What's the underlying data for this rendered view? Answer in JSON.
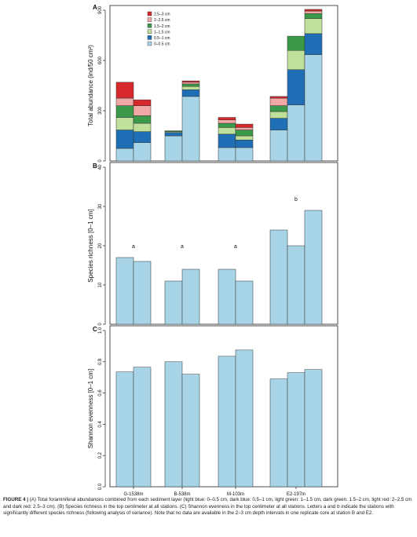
{
  "colors": {
    "bin_0_05": "#a8d4e8",
    "bin_05_1": "#1f6fb6",
    "bin_1_15": "#bfe09a",
    "bin_15_2": "#3a9a4a",
    "bin_2_25": "#f2a8a4",
    "bin_25_3": "#d7282c",
    "bar": "#a8d4e8",
    "outline": "#333333"
  },
  "chart_data": [
    {
      "panel": "A",
      "type": "bar",
      "stacked": true,
      "ylabel": "Total abundance (ind/50 cm²)",
      "ylim": [
        0,
        900
      ],
      "yticks": [
        "0",
        "300",
        "600",
        "900"
      ],
      "categories": [
        "G-1538m",
        "B-538m",
        "M-103m",
        "E2-197m"
      ],
      "legend_position": "top-left",
      "legend": [
        {
          "label": "2.5–3 cm",
          "color": "#d7282c"
        },
        {
          "label": "2–2.5 cm",
          "color": "#f2a8a4"
        },
        {
          "label": "1.5–2 cm",
          "color": "#3a9a4a"
        },
        {
          "label": "1–1.5 cm",
          "color": "#bfe09a"
        },
        {
          "label": "0.5–1 cm",
          "color": "#1f6fb6"
        },
        {
          "label": "0–0.5 cm",
          "color": "#a8d4e8"
        }
      ],
      "bars": [
        {
          "group": 0,
          "segments": [
            {
              "bin": "0–0.5 cm",
              "value": 75
            },
            {
              "bin": "0.5–1 cm",
              "value": 110
            },
            {
              "bin": "1–1.5 cm",
              "value": 75
            },
            {
              "bin": "1.5–2 cm",
              "value": 70
            },
            {
              "bin": "2–2.5 cm",
              "value": 45
            },
            {
              "bin": "2.5–3 cm",
              "value": 95
            }
          ]
        },
        {
          "group": 0,
          "segments": [
            {
              "bin": "0–0.5 cm",
              "value": 110
            },
            {
              "bin": "0.5–1 cm",
              "value": 65
            },
            {
              "bin": "1–1.5 cm",
              "value": 50
            },
            {
              "bin": "1.5–2 cm",
              "value": 45
            },
            {
              "bin": "2–2.5 cm",
              "value": 60
            },
            {
              "bin": "2.5–3 cm",
              "value": 35
            }
          ]
        },
        {
          "group": 1,
          "segments": [
            {
              "bin": "0–0.5 cm",
              "value": 150
            },
            {
              "bin": "0.5–1 cm",
              "value": 20
            },
            {
              "bin": "1–1.5 cm",
              "value": 5
            },
            {
              "bin": "1.5–2 cm",
              "value": 5
            }
          ]
        },
        {
          "group": 1,
          "segments": [
            {
              "bin": "0–0.5 cm",
              "value": 385
            },
            {
              "bin": "0.5–1 cm",
              "value": 40
            },
            {
              "bin": "1–1.5 cm",
              "value": 20
            },
            {
              "bin": "1.5–2 cm",
              "value": 15
            },
            {
              "bin": "2–2.5 cm",
              "value": 10
            },
            {
              "bin": "2.5–3 cm",
              "value": 8
            }
          ]
        },
        {
          "group": 2,
          "segments": [
            {
              "bin": "0–0.5 cm",
              "value": 80
            },
            {
              "bin": "0.5–1 cm",
              "value": 80
            },
            {
              "bin": "1–1.5 cm",
              "value": 40
            },
            {
              "bin": "1.5–2 cm",
              "value": 25
            },
            {
              "bin": "2–2.5 cm",
              "value": 20
            },
            {
              "bin": "2.5–3 cm",
              "value": 15
            }
          ]
        },
        {
          "group": 2,
          "segments": [
            {
              "bin": "0–0.5 cm",
              "value": 80
            },
            {
              "bin": "0.5–1 cm",
              "value": 45
            },
            {
              "bin": "1–1.5 cm",
              "value": 25
            },
            {
              "bin": "1.5–2 cm",
              "value": 35
            },
            {
              "bin": "2–2.5 cm",
              "value": 15
            },
            {
              "bin": "2.5–3 cm",
              "value": 20
            }
          ]
        },
        {
          "group": 3,
          "segments": [
            {
              "bin": "0–0.5 cm",
              "value": 185
            },
            {
              "bin": "0.5–1 cm",
              "value": 70
            },
            {
              "bin": "1–1.5 cm",
              "value": 40
            },
            {
              "bin": "1.5–2 cm",
              "value": 35
            },
            {
              "bin": "2–2.5 cm",
              "value": 45
            },
            {
              "bin": "2.5–3 cm",
              "value": 10
            }
          ]
        },
        {
          "group": 3,
          "segments": [
            {
              "bin": "0–0.5 cm",
              "value": 335
            },
            {
              "bin": "0.5–1 cm",
              "value": 210
            },
            {
              "bin": "1–1.5 cm",
              "value": 115
            },
            {
              "bin": "1.5–2 cm",
              "value": 85
            }
          ]
        },
        {
          "group": 3,
          "segments": [
            {
              "bin": "0–0.5 cm",
              "value": 635
            },
            {
              "bin": "0.5–1 cm",
              "value": 125
            },
            {
              "bin": "1–1.5 cm",
              "value": 90
            },
            {
              "bin": "1.5–2 cm",
              "value": 30
            },
            {
              "bin": "2–2.5 cm",
              "value": 15
            },
            {
              "bin": "2.5–3 cm",
              "value": 10
            }
          ]
        }
      ]
    },
    {
      "panel": "B",
      "type": "bar",
      "ylabel": "Species richness [0–1 cm]",
      "ylim": [
        0,
        40
      ],
      "yticks": [
        "0",
        "10",
        "20",
        "30",
        "40"
      ],
      "categories": [
        "G-1538m",
        "B-538m",
        "M-103m",
        "E2-197m"
      ],
      "bars": [
        {
          "group": 0,
          "value": 17
        },
        {
          "group": 0,
          "value": 16
        },
        {
          "group": 1,
          "value": 11
        },
        {
          "group": 1,
          "value": 14
        },
        {
          "group": 2,
          "value": 14
        },
        {
          "group": 2,
          "value": 11
        },
        {
          "group": 3,
          "value": 24
        },
        {
          "group": 3,
          "value": 20
        },
        {
          "group": 3,
          "value": 29
        }
      ],
      "annotations": [
        {
          "group": 0,
          "text": "a",
          "y": 20
        },
        {
          "group": 1,
          "text": "a",
          "y": 20
        },
        {
          "group": 2,
          "text": "a",
          "y": 20
        },
        {
          "group": 3,
          "text": "b",
          "y": 32
        }
      ]
    },
    {
      "panel": "C",
      "type": "bar",
      "ylabel": "Shannon evenness [0–1 cm]",
      "ylim": [
        0,
        1.0
      ],
      "yticks": [
        "0.0",
        "0.2",
        "0.4",
        "0.6",
        "0.8",
        "1.0"
      ],
      "categories": [
        "G-1538m",
        "B-538m",
        "M-103m",
        "E2-197m"
      ],
      "bars": [
        {
          "group": 0,
          "value": 0.735
        },
        {
          "group": 0,
          "value": 0.765
        },
        {
          "group": 1,
          "value": 0.8
        },
        {
          "group": 1,
          "value": 0.72
        },
        {
          "group": 2,
          "value": 0.835
        },
        {
          "group": 2,
          "value": 0.875
        },
        {
          "group": 3,
          "value": 0.69
        },
        {
          "group": 3,
          "value": 0.73
        },
        {
          "group": 3,
          "value": 0.75
        }
      ]
    }
  ],
  "caption": {
    "label": "FIGURE 4 | ",
    "text": "(A) Total foraminiferal abundances combined from each sediment layer (light blue: 0–0.5 cm, dark blue: 0.5–1 cm, light green: 1–1.5 cm, dark green: 1.5–2 cm, light red: 2–2.5 cm and dark red: 2.5–3 cm). (B) Species richness in the top centimeter at all stations. (C) Shannon evenness in the top centimeter at all stations. Letters a and b indicate the stations with significantly different species richness (following analysis of variance). Note that no data are available in the 2–3 cm depth intervals in one replicate core at station B and E2."
  }
}
